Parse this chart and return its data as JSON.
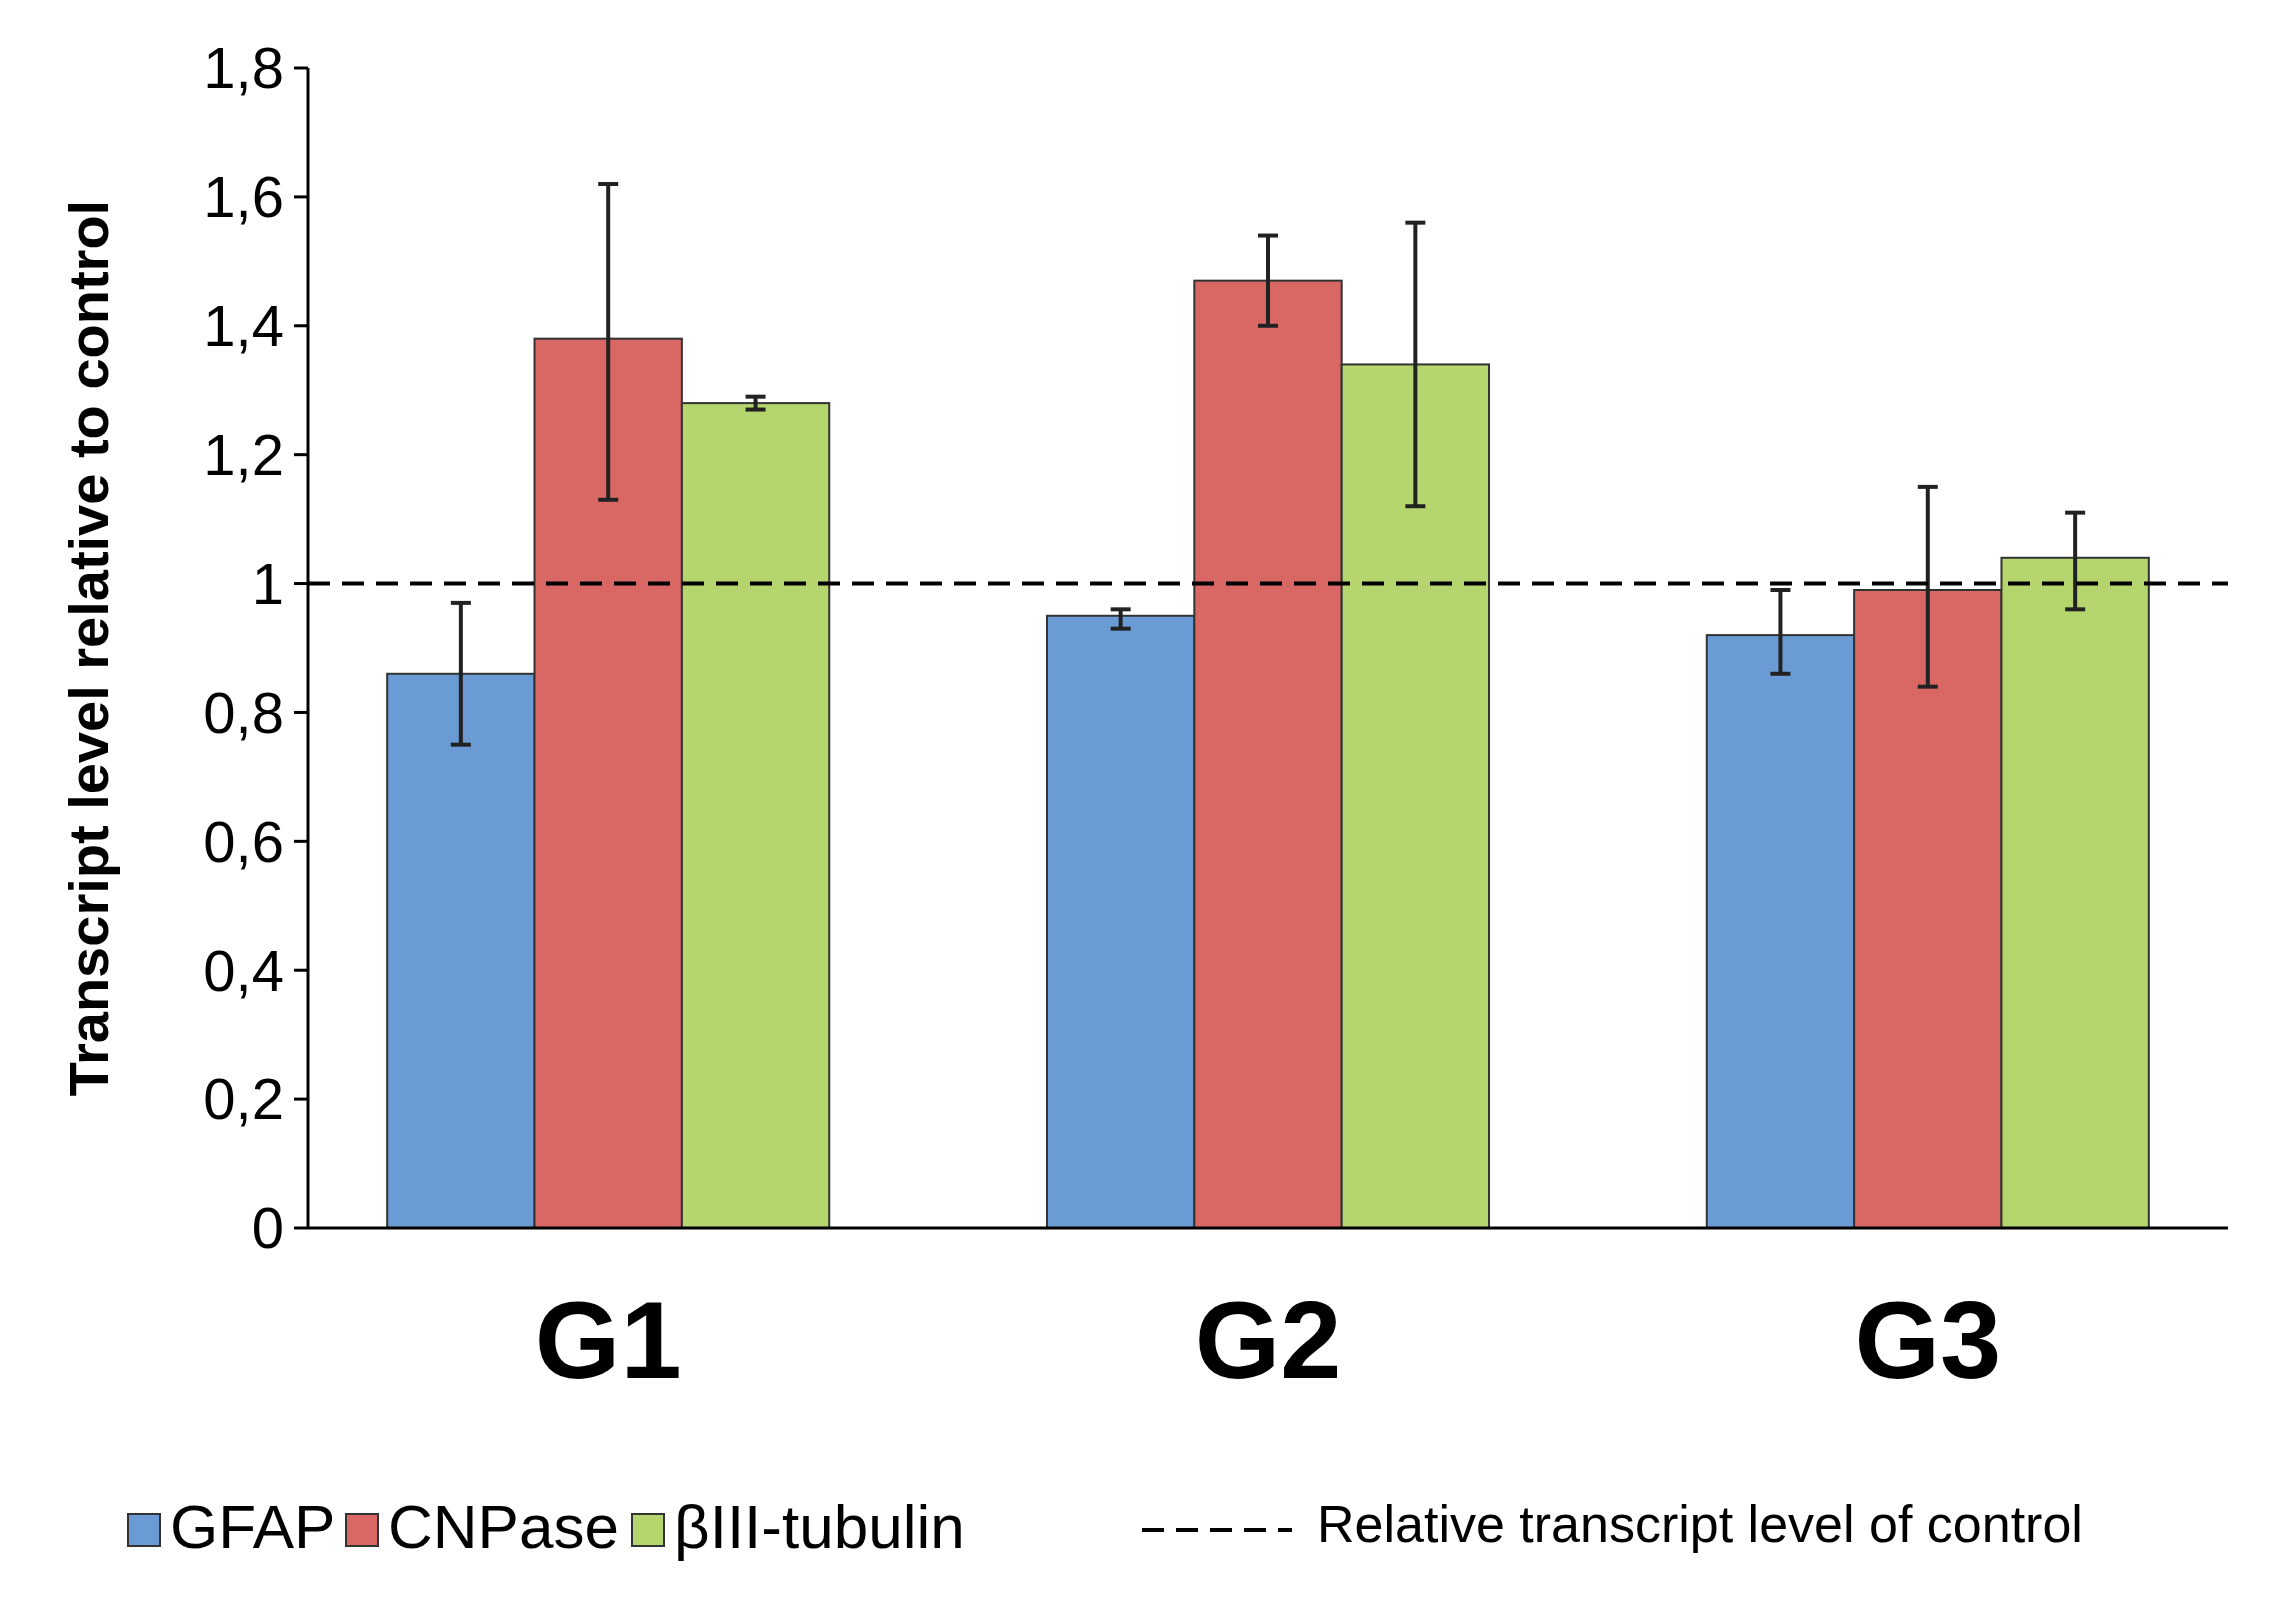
{
  "chart_data": {
    "type": "bar",
    "ylabel": "Transcript level relative to control",
    "categories": [
      "G1",
      "G2",
      "G3"
    ],
    "series": [
      {
        "name": "GFAP",
        "color": "#6a9bd4",
        "values": [
          0.86,
          0.95,
          0.92
        ],
        "errors": [
          [
            0.75,
            0.97
          ],
          [
            0.93,
            0.96
          ],
          [
            0.86,
            0.99
          ]
        ]
      },
      {
        "name": "CNPase",
        "color": "#d96764",
        "values": [
          1.38,
          1.47,
          0.99
        ],
        "errors": [
          [
            1.13,
            1.62
          ],
          [
            1.4,
            1.54
          ],
          [
            0.84,
            1.15
          ]
        ]
      },
      {
        "name": "βIII-tubulin",
        "color": "#b5d56e",
        "values": [
          1.28,
          1.34,
          1.04
        ],
        "errors": [
          [
            1.27,
            1.29
          ],
          [
            1.12,
            1.56
          ],
          [
            0.96,
            1.11
          ]
        ]
      }
    ],
    "ylim": [
      0,
      1.8
    ],
    "yticks": [
      0,
      {
        "value": 0.2,
        "label": "0,2"
      },
      {
        "value": 0.4,
        "label": "0,4"
      },
      {
        "value": 0.6,
        "label": "0,6"
      },
      {
        "value": 0.8,
        "label": "0,8"
      },
      1,
      {
        "value": 1.2,
        "label": "1,2"
      },
      {
        "value": 1.4,
        "label": "1,4"
      },
      {
        "value": 1.6,
        "label": "1,6"
      },
      {
        "value": 1.8,
        "label": "1,8"
      }
    ],
    "ref_lines": [
      {
        "axis": "y",
        "value": 1,
        "label": "Relative transcript level of control",
        "line_style": "dashed"
      }
    ],
    "grid": false,
    "legend": "bottom"
  }
}
